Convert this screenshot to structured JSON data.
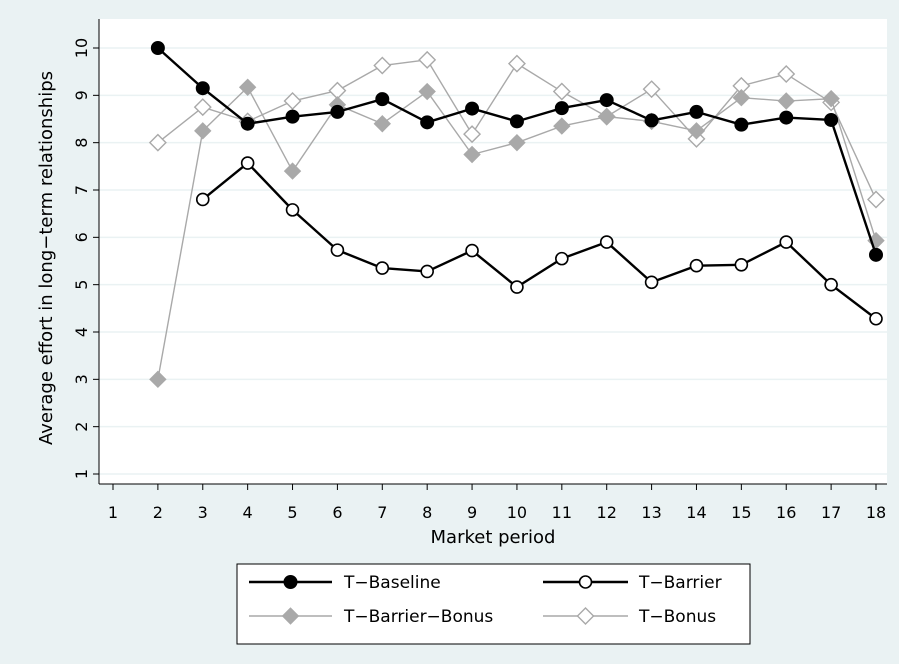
{
  "chart_data": {
    "type": "line",
    "title": "",
    "xlabel": "Market period",
    "ylabel": "Average effort in long−term relationships",
    "x": [
      1,
      2,
      3,
      4,
      5,
      6,
      7,
      8,
      9,
      10,
      11,
      12,
      13,
      14,
      15,
      16,
      17,
      18
    ],
    "xlim": [
      1,
      18
    ],
    "ylim": [
      1,
      10
    ],
    "yticks": [
      1,
      2,
      3,
      4,
      5,
      6,
      7,
      8,
      9,
      10
    ],
    "grid": true,
    "legend_position": "bottom",
    "series": [
      {
        "name": "T−Baseline",
        "marker": "filled-circle",
        "color": "#000000",
        "values": [
          null,
          10.0,
          9.15,
          8.4,
          8.55,
          8.65,
          8.92,
          8.43,
          8.72,
          8.45,
          8.73,
          8.9,
          8.47,
          8.65,
          8.38,
          8.53,
          8.48,
          5.63
        ]
      },
      {
        "name": "T−Barrier",
        "marker": "hollow-circle",
        "color": "#000000",
        "values": [
          null,
          null,
          6.8,
          7.57,
          6.58,
          5.73,
          5.35,
          5.28,
          5.72,
          4.95,
          5.55,
          5.9,
          5.05,
          5.4,
          5.42,
          5.9,
          5.0,
          4.28
        ]
      },
      {
        "name": "T−Barrier−Bonus",
        "marker": "filled-diamond",
        "color": "#a9a9a9",
        "values": [
          null,
          3.0,
          8.25,
          9.17,
          7.4,
          8.8,
          8.4,
          9.08,
          7.75,
          8.0,
          8.35,
          8.55,
          8.45,
          8.25,
          8.95,
          8.88,
          8.93,
          5.93
        ]
      },
      {
        "name": "T−Bonus",
        "marker": "hollow-diamond",
        "color": "#a9a9a9",
        "values": [
          null,
          8.0,
          8.75,
          8.45,
          8.88,
          9.1,
          9.63,
          9.75,
          8.18,
          9.67,
          9.08,
          8.55,
          9.13,
          8.08,
          9.2,
          9.45,
          8.85,
          6.8
        ]
      }
    ]
  }
}
